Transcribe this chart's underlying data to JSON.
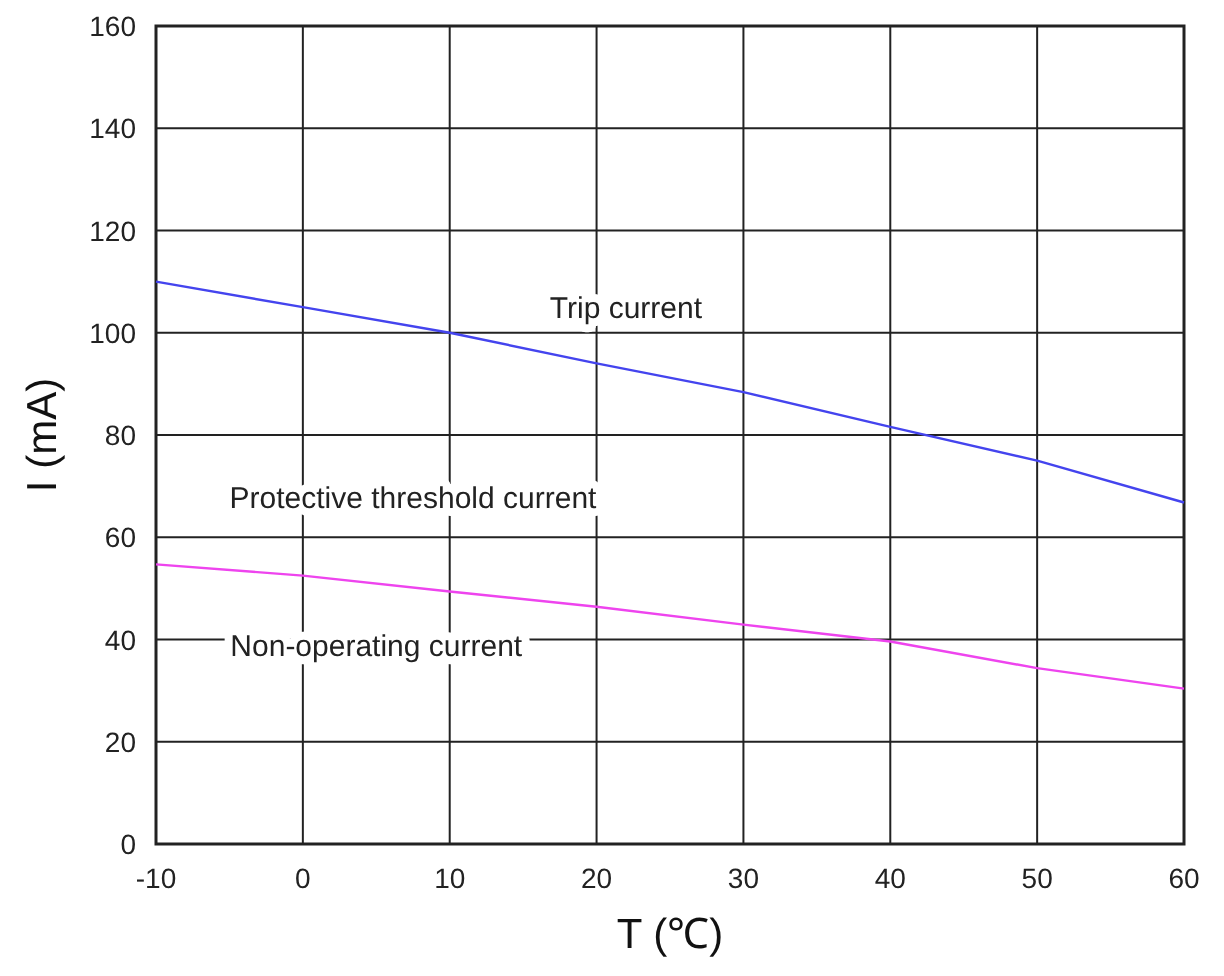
{
  "chart_data": {
    "type": "line",
    "xlabel": "T (℃)",
    "ylabel": "I (mA)",
    "x": [
      -10,
      0,
      10,
      20,
      30,
      40,
      50,
      60
    ],
    "series": [
      {
        "name": "Trip current",
        "color": "#4444ee",
        "values": [
          110,
          105,
          100,
          94,
          88.4,
          81.6,
          75,
          66.8
        ]
      },
      {
        "name": "Non-operating current",
        "color": "#ee44ee",
        "values": [
          54.7,
          52.5,
          49.4,
          46.4,
          42.9,
          39.6,
          34.4,
          30.4
        ]
      }
    ],
    "annotations": [
      "Protective threshold current"
    ],
    "xlim": [
      -10,
      60
    ],
    "xticks": [
      -10,
      0,
      10,
      20,
      30,
      40,
      50,
      60
    ],
    "ylim": [
      0,
      160
    ],
    "yticks": [
      0,
      20,
      40,
      60,
      80,
      100,
      120,
      140,
      160
    ],
    "grid": true,
    "marker": "none",
    "line_style": "solid"
  }
}
